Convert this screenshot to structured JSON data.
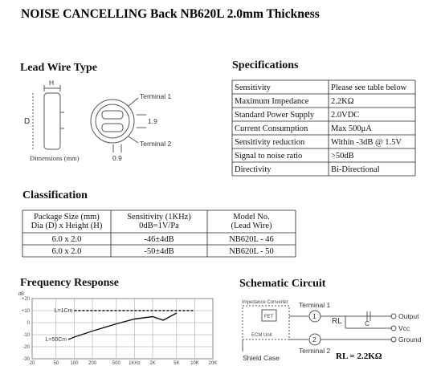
{
  "title": "NOISE CANCELLING Back NB620L 2.0mm Thickness",
  "lead_wire": {
    "title": "Lead Wire Type",
    "labels": {
      "h": "H",
      "d": "D",
      "terminal1": "Terminal 1",
      "pitch": "1.9",
      "terminal2": "Terminal 2",
      "dimensions": "Dimensions (mm)",
      "wire": "0.9"
    }
  },
  "specifications": {
    "title": "Specifications",
    "rows": [
      [
        "Sensitivity",
        "Please see table below"
      ],
      [
        "Maximum Impedance",
        "2.2KΩ"
      ],
      [
        "Standard Power Supply",
        "2.0VDC"
      ],
      [
        "Current Consumption",
        "Max 500μA"
      ],
      [
        "Sensitivity reduction",
        "Within -3dB @ 1.5V"
      ],
      [
        "Signal to noise ratio",
        ">50dB"
      ],
      [
        "Directivity",
        "Bi-Directional"
      ]
    ]
  },
  "classification": {
    "title": "Classification",
    "header": [
      [
        "Package Size (mm)",
        "Dia (D) x Height (H)"
      ],
      [
        "Sensitivity (1KHz)",
        "0dB=1V/Pa"
      ],
      [
        "Model No.",
        "(Lead Wire)"
      ]
    ],
    "rows": [
      [
        "6.0 x 2.0",
        "-46±4dB",
        "NB620L - 46"
      ],
      [
        "6.0 x 2.0",
        "-50±4dB",
        "NB620L - 50"
      ]
    ]
  },
  "frequency_response": {
    "title": "Frequency Response",
    "y_label": "dB",
    "log_x": true,
    "xlim": [
      20,
      20000
    ],
    "ylim": [
      -30,
      20
    ],
    "xticks": [
      20,
      50,
      100,
      200,
      500,
      {
        "value": 1000,
        "label": "1KHz"
      },
      {
        "value": 2000,
        "label": "2K"
      },
      {
        "value": 5000,
        "label": "5K"
      },
      {
        "value": 10000,
        "label": "10K"
      },
      {
        "value": 20000,
        "label": "20K"
      }
    ],
    "yticks": [
      {
        "value": 20,
        "label": "+20"
      },
      {
        "value": 10,
        "label": "+10"
      },
      0,
      -10,
      -20,
      -30
    ],
    "series": [
      {
        "name": "L=1Cm",
        "color": "#111111",
        "dashed": true,
        "x": [
          100,
          10000
        ],
        "values": [
          10,
          10
        ]
      },
      {
        "name": "L=50Cm",
        "color": "#111111",
        "dashed": false,
        "x": [
          80,
          100,
          200,
          500,
          1000,
          2000,
          3000,
          5000
        ],
        "values": [
          -14,
          -12,
          -7,
          -1,
          3,
          5,
          2,
          8
        ]
      }
    ]
  },
  "schematic": {
    "title": "Schematic Circuit",
    "labels": {
      "converter": "Impedance Converter",
      "fet": "FET",
      "ecm": "ECM Unit",
      "terminal1": "Terminal 1",
      "pin1": "1",
      "rl": "RL",
      "c": "C",
      "output": "Output",
      "vcc": "Vcc",
      "ground": "Ground",
      "pin2": "2",
      "terminal2": "Terminal 2",
      "shield": "Shield Case"
    },
    "note": "RL = 2.2KΩ"
  }
}
